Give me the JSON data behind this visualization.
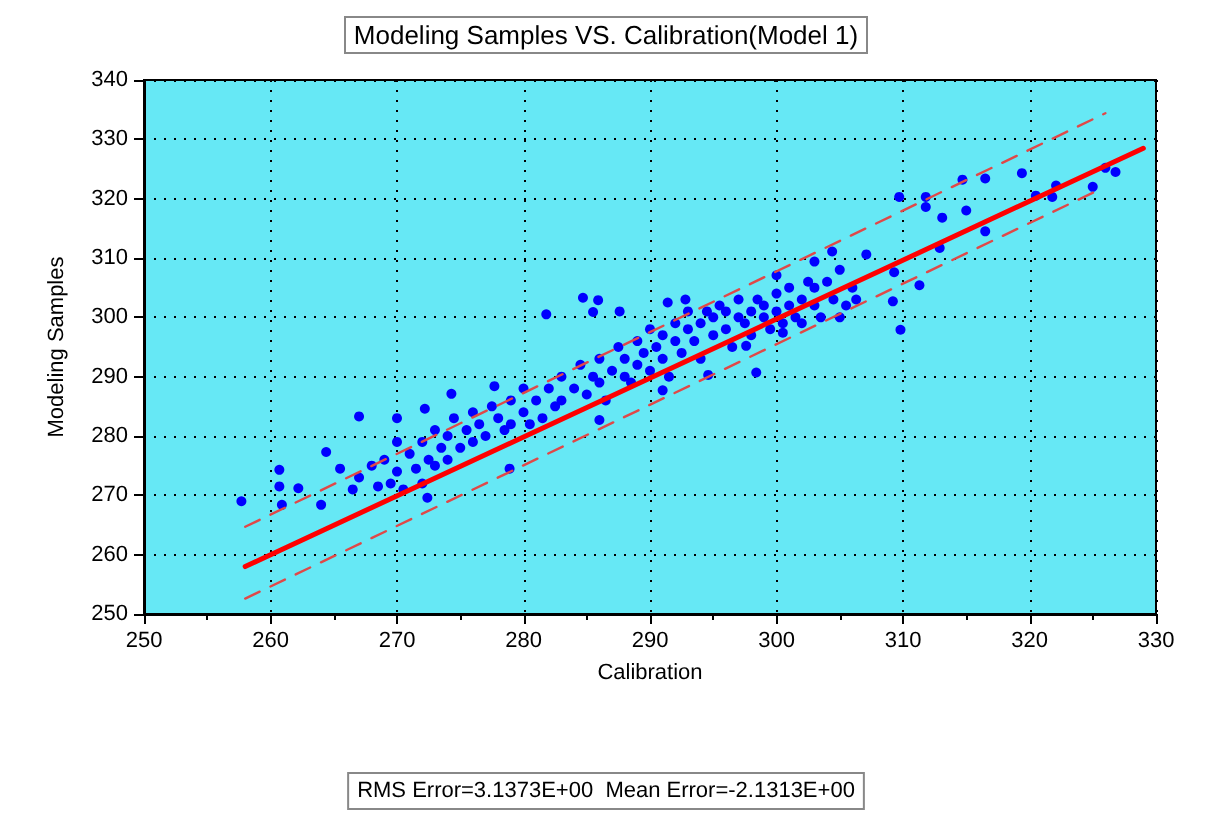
{
  "chart_data": {
    "type": "scatter",
    "title": "Modeling Samples VS. Calibration(Model 1)",
    "xlabel": "Calibration",
    "ylabel": "Modeling Samples",
    "annotations": [
      "RMS Error=3.1373E+00  Mean Error=-2.1313E+00"
    ],
    "xlim": [
      250,
      330
    ],
    "xticks": [
      250,
      260,
      270,
      280,
      290,
      300,
      310,
      320,
      330
    ],
    "ylim": [
      250,
      340
    ],
    "yticks": [
      250,
      260,
      270,
      280,
      290,
      300,
      310,
      320,
      330,
      340
    ],
    "grid": true,
    "marker": "circle",
    "series": [
      {
        "color": "#0000ff",
        "x": [
          257.7,
          260.7,
          260.7,
          262.2,
          260.9,
          264.4,
          265.5,
          267,
          264,
          270,
          272.2,
          274.3,
          277.7,
          281.8,
          284.7,
          285.9,
          285.5,
          287.6,
          278.9,
          272.4,
          286,
          309.8,
          309.2,
          298.4,
          294.6,
          291,
          309.7,
          311.8,
          314.7,
          316.5,
          319.4,
          326,
          326.8,
          325,
          322.1,
          321.8,
          320.5,
          316.5,
          312.9,
          311.3,
          309.3,
          307.1,
          304.4,
          303,
          300,
          292.8,
          291.4,
          300.5,
          297.6,
          306.3,
          305,
          313.1,
          311.8,
          315,
          266.5,
          267,
          268,
          268.5,
          269,
          269.5,
          270,
          270,
          270.5,
          271,
          271.5,
          272,
          272,
          272.5,
          273,
          273,
          273.5,
          274,
          274,
          274.5,
          275,
          275.5,
          276,
          276,
          276.5,
          277,
          277.5,
          278,
          278.5,
          279,
          279,
          280,
          280,
          280.5,
          281,
          281.5,
          282,
          282.5,
          283,
          283,
          284,
          284.5,
          285,
          285.5,
          286,
          286,
          286.5,
          287,
          287.5,
          288,
          288,
          288.5,
          289,
          289,
          289.5,
          290,
          290,
          290.5,
          291,
          291,
          291.5,
          292,
          292,
          292.5,
          293,
          293,
          293.5,
          294,
          294,
          294.5,
          295,
          295,
          295.5,
          296,
          296,
          296.5,
          297,
          297,
          297.5,
          298,
          298,
          298.5,
          299,
          299,
          299.5,
          300,
          300,
          300.5,
          301,
          301,
          301.5,
          302,
          302,
          302.5,
          303,
          303,
          303.5,
          304,
          304.5,
          305,
          305.5,
          306
        ],
        "values": [
          269,
          274.3,
          271.5,
          271.2,
          268.4,
          277.3,
          274.5,
          283.3,
          268.4,
          283,
          284.6,
          287.1,
          288.4,
          300.5,
          303.3,
          302.9,
          300.9,
          301,
          274.5,
          269.6,
          282.7,
          297.9,
          302.7,
          290.7,
          290.3,
          287.7,
          320.3,
          320.3,
          323.2,
          323.4,
          324.3,
          325.2,
          324.5,
          322,
          322.2,
          320.3,
          320.5,
          314.5,
          311.7,
          305.4,
          307.6,
          310.6,
          311.1,
          309.4,
          307.1,
          303,
          302.5,
          297.4,
          295.2,
          303,
          300,
          316.8,
          318.6,
          318,
          271,
          273,
          275,
          271.5,
          276,
          272,
          274,
          279,
          271,
          277,
          274.5,
          279,
          272,
          276,
          281,
          275,
          278,
          280,
          276,
          283,
          278,
          281,
          279,
          284,
          282,
          280,
          285,
          283,
          281,
          286,
          282,
          284,
          288,
          282,
          286,
          283,
          288,
          285,
          290,
          286,
          288,
          292,
          287,
          290,
          293,
          289,
          286,
          291,
          295,
          290,
          293,
          289,
          296,
          292,
          294,
          291,
          298,
          295,
          293,
          297,
          290,
          296,
          299,
          294,
          298,
          301,
          296,
          299,
          293,
          301,
          297,
          300,
          302,
          298,
          301,
          295,
          300,
          303,
          299,
          301,
          297,
          303,
          300,
          302,
          298,
          301,
          304,
          299,
          302,
          305,
          300,
          303,
          299,
          306,
          302,
          305,
          300,
          306,
          303,
          308,
          302,
          305
        ]
      },
      {
        "type": "line",
        "color": "#ff0000",
        "marker": "none",
        "line_style": "solid",
        "x": [
          258,
          329
        ],
        "values": [
          258,
          328.5
        ]
      },
      {
        "type": "line",
        "color": "#e04848",
        "marker": "none",
        "line_style": "dashed",
        "x": [
          258,
          326
        ],
        "values": [
          264.7,
          334.4
        ]
      },
      {
        "type": "line",
        "color": "#e04848",
        "marker": "none",
        "line_style": "dashed",
        "x": [
          258,
          325.5
        ],
        "values": [
          252.6,
          321.5
        ]
      }
    ]
  }
}
